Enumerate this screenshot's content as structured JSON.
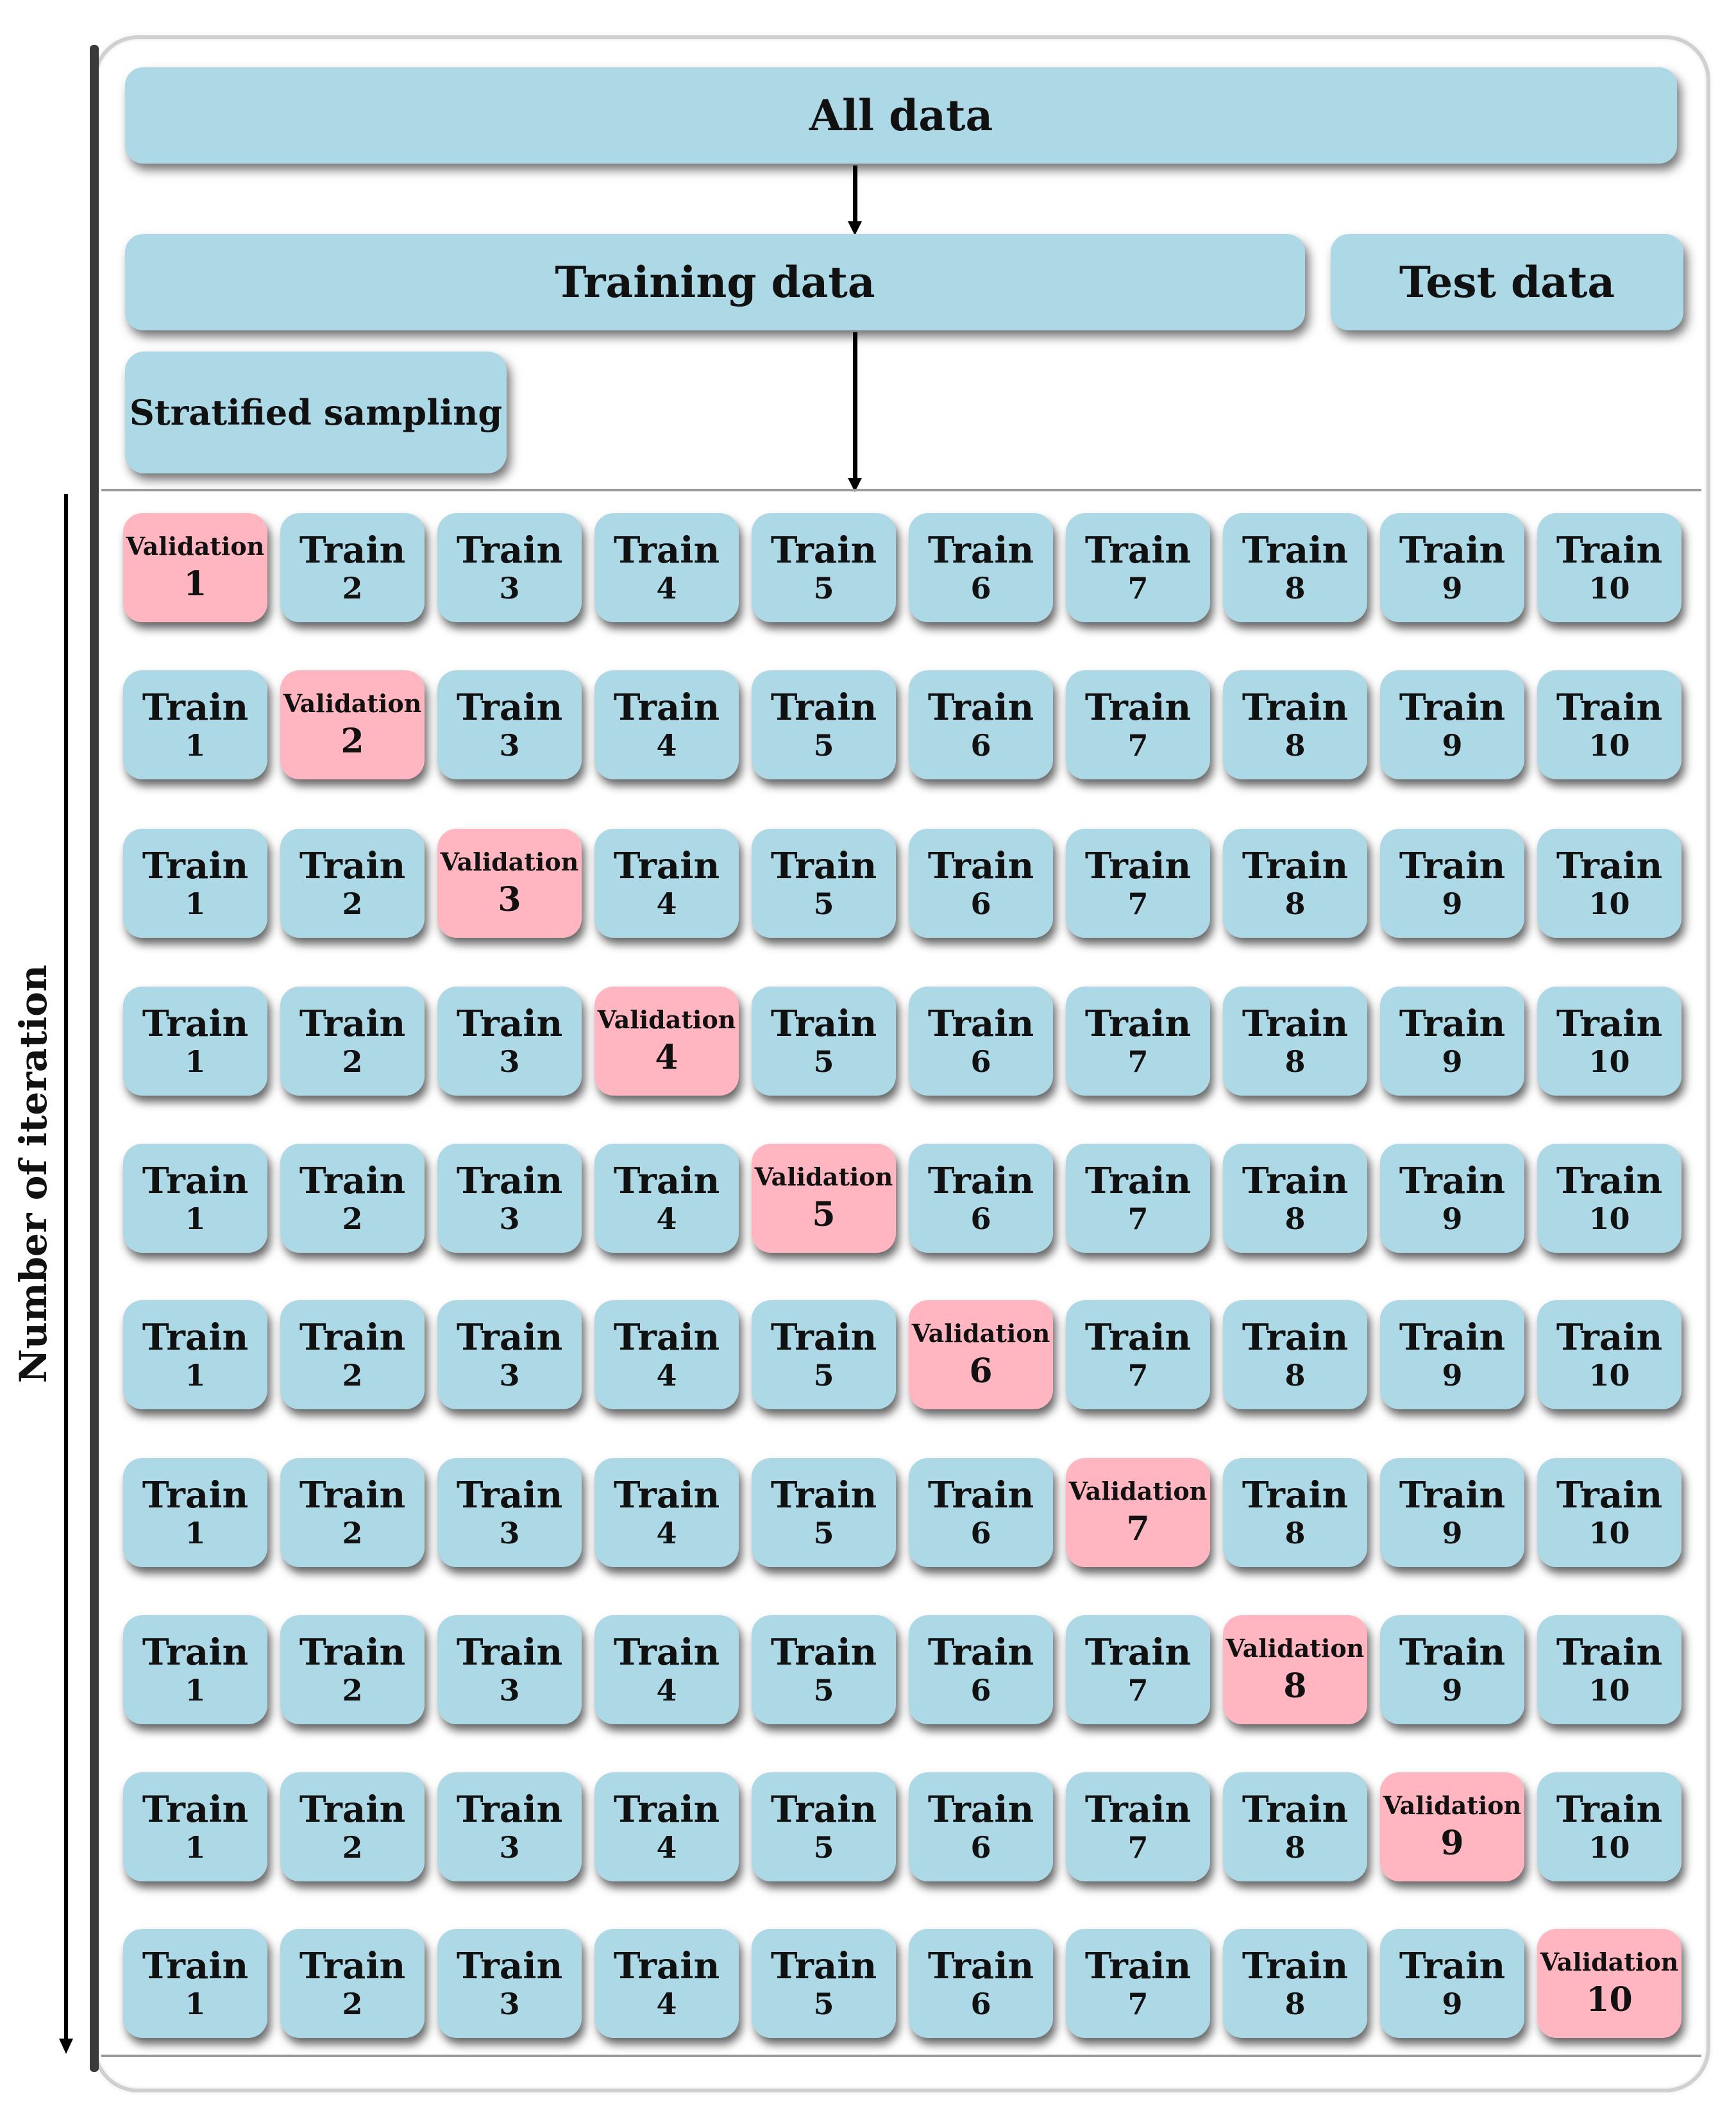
{
  "header": {
    "all_data": "All data",
    "training_data": "Training data",
    "test_data": "Test data",
    "stratified_sampling": "Stratified sampling"
  },
  "axis": {
    "label": "Number of iteration"
  },
  "colors": {
    "train": "#add8e6",
    "validation": "#ffb6c1"
  },
  "folds": {
    "train_label": "Train",
    "validation_label": "Validation",
    "count": 10,
    "iterations": [
      1,
      2,
      3,
      4,
      5,
      6,
      7,
      8,
      9,
      10
    ]
  }
}
